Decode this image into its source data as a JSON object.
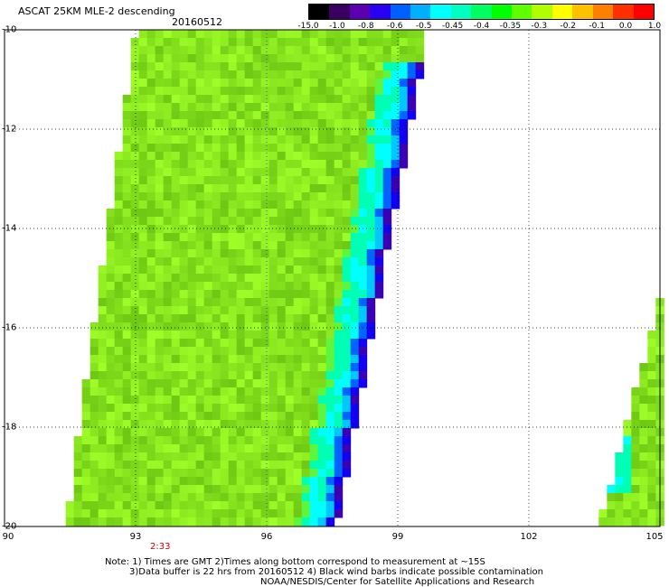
{
  "header": {
    "title": "ASCAT 25KM MLE-2 descending",
    "date": "20160512"
  },
  "colorbar": {
    "labels": [
      "-15.0",
      "-1.0",
      "-0.8",
      "-0.6",
      "-0.5",
      "-0.45",
      "-0.4",
      "-0.35",
      "-0.3",
      "-0.2",
      "-0.1",
      "0.0",
      "1.0"
    ],
    "colors": [
      "#000000",
      "#3a0060",
      "#5a00b0",
      "#2a00f0",
      "#0060ff",
      "#00b0ff",
      "#00ffff",
      "#00ffc0",
      "#00ff60",
      "#00ff00",
      "#60ff00",
      "#b0ff00",
      "#ffff00",
      "#ffc000",
      "#ff8000",
      "#ff3000",
      "#ff0000"
    ]
  },
  "map": {
    "lat_range": [
      -20,
      -10
    ],
    "lon_range": [
      90,
      105
    ],
    "lat_ticks": [
      "-10",
      "-12",
      "-14",
      "-16",
      "-18",
      "-20"
    ],
    "lon_ticks": [
      "90",
      "93",
      "96",
      "99",
      "102",
      "105"
    ],
    "grid": true,
    "swaths": [
      {
        "main_color": "#8cf51e",
        "polygon": [
          [
            93.0,
            -10.0
          ],
          [
            99.7,
            -10.0
          ],
          [
            97.6,
            -20.0
          ],
          [
            91.4,
            -20.0
          ]
        ]
      },
      {
        "main_color": "#8cf51e",
        "polygon": [
          [
            105.0,
            -15.4
          ],
          [
            105.0,
            -20.0
          ],
          [
            103.6,
            -20.0
          ]
        ]
      }
    ],
    "edge_colors": [
      "#00ffff",
      "#00c8ff",
      "#0064ff",
      "#1400f0",
      "#3c00b4",
      "#00ffb4"
    ]
  },
  "time_label": "2:33",
  "notes": [
    "Note: 1) Times are GMT 2)Times along bottom correspond to measurement at ~15S",
    "3)Data buffer is 22 hrs from 20160512 4) Black wind barbs indicate possible contamination",
    "NOAA/NESDIS/Center for Satellite Applications and Research"
  ]
}
